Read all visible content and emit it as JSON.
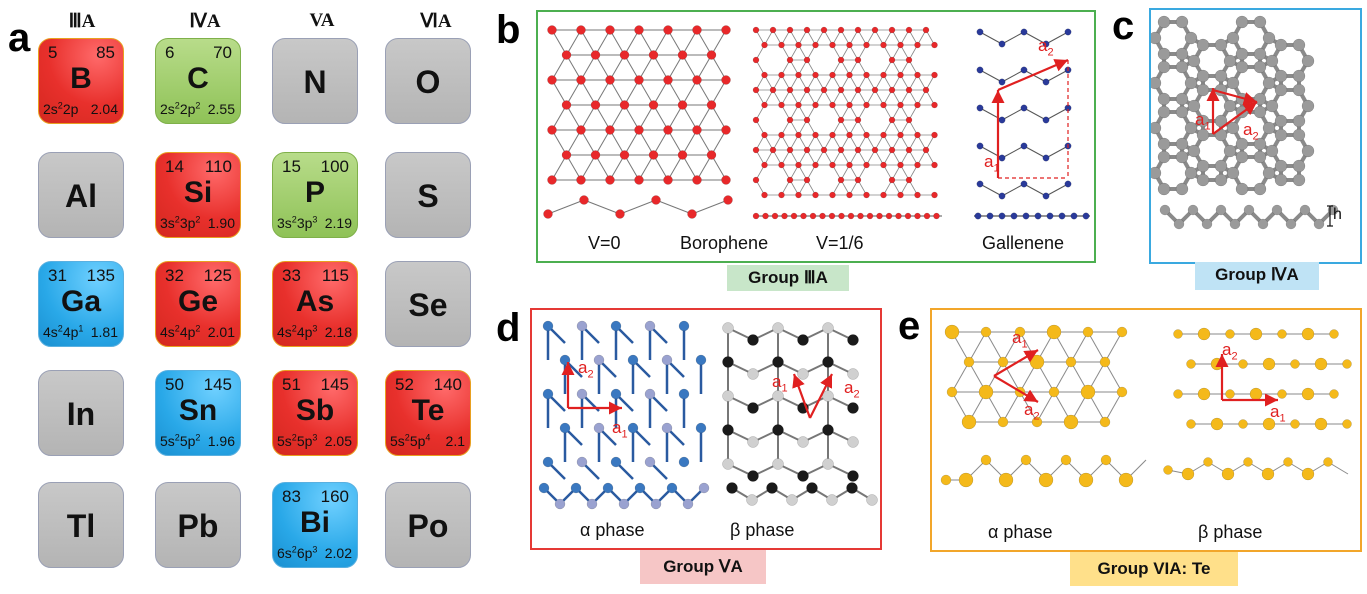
{
  "panels": {
    "a": "a",
    "b": "b",
    "c": "c",
    "d": "d",
    "e": "e"
  },
  "group_headers": [
    "ⅢA",
    "ⅣA",
    "VA",
    "ⅥA"
  ],
  "tiles": [
    {
      "sym": "B",
      "z": "5",
      "r": "85",
      "cfg": "2s<sup>2</sup>2p",
      "en": "2.04",
      "color": "red"
    },
    {
      "sym": "C",
      "z": "6",
      "r": "70",
      "cfg": "2s<sup>2</sup>2p<sup>2</sup>",
      "en": "2.55",
      "color": "green"
    },
    {
      "sym": "N",
      "color": "grey"
    },
    {
      "sym": "O",
      "color": "grey"
    },
    {
      "sym": "Al",
      "color": "grey"
    },
    {
      "sym": "Si",
      "z": "14",
      "r": "110",
      "cfg": "3s<sup>2</sup>3p<sup>2</sup>",
      "en": "1.90",
      "color": "red"
    },
    {
      "sym": "P",
      "z": "15",
      "r": "100",
      "cfg": "3s<sup>2</sup>3p<sup>3</sup>",
      "en": "2.19",
      "color": "green"
    },
    {
      "sym": "S",
      "color": "grey"
    },
    {
      "sym": "Ga",
      "z": "31",
      "r": "135",
      "cfg": "4s<sup>2</sup>4p<sup>1</sup>",
      "en": "1.81",
      "color": "blue"
    },
    {
      "sym": "Ge",
      "z": "32",
      "r": "125",
      "cfg": "4s<sup>2</sup>4p<sup>2</sup>",
      "en": "2.01",
      "color": "red"
    },
    {
      "sym": "As",
      "z": "33",
      "r": "115",
      "cfg": "4s<sup>2</sup>4p<sup>3</sup>",
      "en": "2.18",
      "color": "red"
    },
    {
      "sym": "Se",
      "color": "grey"
    },
    {
      "sym": "In",
      "color": "grey"
    },
    {
      "sym": "Sn",
      "z": "50",
      "r": "145",
      "cfg": "5s<sup>2</sup>5p<sup>2</sup>",
      "en": "1.96",
      "color": "blue"
    },
    {
      "sym": "Sb",
      "z": "51",
      "r": "145",
      "cfg": "5s<sup>2</sup>5p<sup>3</sup>",
      "en": "2.05",
      "color": "red"
    },
    {
      "sym": "Te",
      "z": "52",
      "r": "140",
      "cfg": "5s<sup>2</sup>5p<sup>4</sup>",
      "en": "2.1",
      "color": "red"
    },
    {
      "sym": "Tl",
      "color": "grey"
    },
    {
      "sym": "Pb",
      "color": "grey"
    },
    {
      "sym": "Bi",
      "z": "83",
      "r": "160",
      "cfg": "6s<sup>2</sup>6p<sup>3</sup>",
      "en": "2.02",
      "color": "blue"
    },
    {
      "sym": "Po",
      "color": "grey"
    }
  ],
  "panel_b": {
    "v0": "V=0",
    "borophene": "Borophene",
    "v16": "V=1/6",
    "gallenene": "Gallenene",
    "tag": "Group ⅢA"
  },
  "panel_c": {
    "h": "h",
    "tag": "Group ⅣA"
  },
  "panel_d": {
    "alpha": "α phase",
    "beta": "β phase",
    "tag": "Group ⅤA"
  },
  "panel_e": {
    "alpha": "α phase",
    "beta": "β phase",
    "tag": "Group VIA: Te"
  },
  "vectors": {
    "a1": "a",
    "a2": "a",
    "sub1": "1",
    "sub2": "2"
  },
  "colors": {
    "red_tile": "#e8302c",
    "green_tile": "#8fc257",
    "blue_tile": "#29a8e8",
    "grey_tile": "#bdbdbd",
    "box_b": "#4caf50",
    "box_c": "#3aa9e0",
    "box_d": "#e53935",
    "box_e": "#f2a62a",
    "tag_b": "#c8e6c9",
    "tag_c": "#bfe3f5",
    "tag_d": "#f6c6c6",
    "tag_e": "#ffe08a"
  }
}
